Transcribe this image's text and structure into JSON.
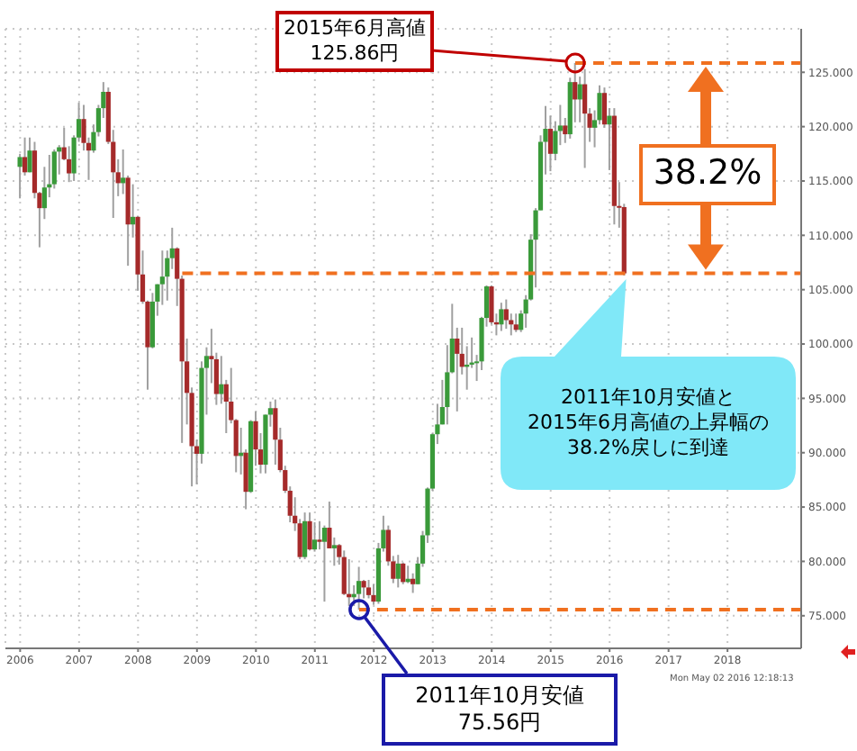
{
  "chart_data": {
    "type": "candlestick",
    "x": [
      "2006-01",
      "2006-02",
      "2006-03",
      "2006-04",
      "2006-05",
      "2006-06",
      "2006-07",
      "2006-08",
      "2006-09",
      "2006-10",
      "2006-11",
      "2006-12",
      "2007-01",
      "2007-02",
      "2007-03",
      "2007-04",
      "2007-05",
      "2007-06",
      "2007-07",
      "2007-08",
      "2007-09",
      "2007-10",
      "2007-11",
      "2007-12",
      "2008-01",
      "2008-02",
      "2008-03",
      "2008-04",
      "2008-05",
      "2008-06",
      "2008-07",
      "2008-08",
      "2008-09",
      "2008-10",
      "2008-11",
      "2008-12",
      "2009-01",
      "2009-02",
      "2009-03",
      "2009-04",
      "2009-05",
      "2009-06",
      "2009-07",
      "2009-08",
      "2009-09",
      "2009-10",
      "2009-11",
      "2009-12",
      "2010-01",
      "2010-02",
      "2010-03",
      "2010-04",
      "2010-05",
      "2010-06",
      "2010-07",
      "2010-08",
      "2010-09",
      "2010-10",
      "2010-11",
      "2010-12",
      "2011-01",
      "2011-02",
      "2011-03",
      "2011-04",
      "2011-05",
      "2011-06",
      "2011-07",
      "2011-08",
      "2011-09",
      "2011-10",
      "2011-11",
      "2011-12",
      "2012-01",
      "2012-02",
      "2012-03",
      "2012-04",
      "2012-05",
      "2012-06",
      "2012-07",
      "2012-08",
      "2012-09",
      "2012-10",
      "2012-11",
      "2012-12",
      "2013-01",
      "2013-02",
      "2013-03",
      "2013-04",
      "2013-05",
      "2013-06",
      "2013-07",
      "2013-08",
      "2013-09",
      "2013-10",
      "2013-11",
      "2013-12",
      "2014-01",
      "2014-02",
      "2014-03",
      "2014-04",
      "2014-05",
      "2014-06",
      "2014-07",
      "2014-08",
      "2014-09",
      "2014-10",
      "2014-11",
      "2014-12",
      "2015-01",
      "2015-02",
      "2015-03",
      "2015-04",
      "2015-05",
      "2015-06",
      "2015-07",
      "2015-08",
      "2015-09",
      "2015-10",
      "2015-11",
      "2015-12",
      "2016-01",
      "2016-02",
      "2016-03",
      "2016-04"
    ],
    "ohlc": [
      [
        116.3,
        117.5,
        113.4,
        117.2
      ],
      [
        117.2,
        119.0,
        115.5,
        115.8
      ],
      [
        115.8,
        119.0,
        115.8,
        117.8
      ],
      [
        117.8,
        118.6,
        113.4,
        113.9
      ],
      [
        113.9,
        114.0,
        108.9,
        112.5
      ],
      [
        112.5,
        116.3,
        111.5,
        114.4
      ],
      [
        114.4,
        117.4,
        113.5,
        114.7
      ],
      [
        114.7,
        117.9,
        114.3,
        117.7
      ],
      [
        117.7,
        118.3,
        115.6,
        118.1
      ],
      [
        118.1,
        119.9,
        116.9,
        117.0
      ],
      [
        117.0,
        118.2,
        114.9,
        115.7
      ],
      [
        115.7,
        119.2,
        115.0,
        119.0
      ],
      [
        119.0,
        122.2,
        118.6,
        120.7
      ],
      [
        120.7,
        122.0,
        117.8,
        118.5
      ],
      [
        118.5,
        119.0,
        115.1,
        117.8
      ],
      [
        117.8,
        120.2,
        117.6,
        119.5
      ],
      [
        119.5,
        122.0,
        119.1,
        121.7
      ],
      [
        121.7,
        124.1,
        120.8,
        123.2
      ],
      [
        123.2,
        123.6,
        118.4,
        118.6
      ],
      [
        118.6,
        119.7,
        111.6,
        115.8
      ],
      [
        115.8,
        117.0,
        113.6,
        114.8
      ],
      [
        114.8,
        117.9,
        113.8,
        115.3
      ],
      [
        115.3,
        115.5,
        107.2,
        111.0
      ],
      [
        111.0,
        114.7,
        109.8,
        111.7
      ],
      [
        111.7,
        111.8,
        104.9,
        106.4
      ],
      [
        106.4,
        108.6,
        103.7,
        103.9
      ],
      [
        103.9,
        104.0,
        95.8,
        99.7
      ],
      [
        99.7,
        104.7,
        99.6,
        103.9
      ],
      [
        103.9,
        105.5,
        102.6,
        105.5
      ],
      [
        105.5,
        108.6,
        103.6,
        106.2
      ],
      [
        106.2,
        108.6,
        104.0,
        107.9
      ],
      [
        107.9,
        110.7,
        106.9,
        108.8
      ],
      [
        108.8,
        108.9,
        103.5,
        106.0
      ],
      [
        106.0,
        106.3,
        90.9,
        98.4
      ],
      [
        98.4,
        100.5,
        92.6,
        95.5
      ],
      [
        95.5,
        96.0,
        86.9,
        90.6
      ],
      [
        90.6,
        91.2,
        87.1,
        89.9
      ],
      [
        89.9,
        98.4,
        89.0,
        97.8
      ],
      [
        97.8,
        99.7,
        93.5,
        98.9
      ],
      [
        98.9,
        101.4,
        96.4,
        98.6
      ],
      [
        98.6,
        99.2,
        94.4,
        95.4
      ],
      [
        95.4,
        98.9,
        94.5,
        96.3
      ],
      [
        96.3,
        96.7,
        91.8,
        94.7
      ],
      [
        94.7,
        97.8,
        92.7,
        93.0
      ],
      [
        93.0,
        93.1,
        88.2,
        89.7
      ],
      [
        89.7,
        92.3,
        88.0,
        90.0
      ],
      [
        90.0,
        90.3,
        84.8,
        86.4
      ],
      [
        86.4,
        93.0,
        86.3,
        92.9
      ],
      [
        92.9,
        93.8,
        88.8,
        90.3
      ],
      [
        90.3,
        91.8,
        88.1,
        88.9
      ],
      [
        88.9,
        93.5,
        88.1,
        93.5
      ],
      [
        93.5,
        94.7,
        92.4,
        94.1
      ],
      [
        94.1,
        94.9,
        88.9,
        91.2
      ],
      [
        91.2,
        92.3,
        88.2,
        88.4
      ],
      [
        88.4,
        88.8,
        86.3,
        86.5
      ],
      [
        86.5,
        86.9,
        83.6,
        84.2
      ],
      [
        84.2,
        85.9,
        82.8,
        83.5
      ],
      [
        83.5,
        83.9,
        80.2,
        80.4
      ],
      [
        80.4,
        84.5,
        80.2,
        83.7
      ],
      [
        83.7,
        84.5,
        81.0,
        81.1
      ],
      [
        81.1,
        83.6,
        80.9,
        82.0
      ],
      [
        82.0,
        83.7,
        81.1,
        81.8
      ],
      [
        81.8,
        83.3,
        76.3,
        83.1
      ],
      [
        83.1,
        85.5,
        81.2,
        81.2
      ],
      [
        81.2,
        82.2,
        79.6,
        81.5
      ],
      [
        81.5,
        81.6,
        79.7,
        80.4
      ],
      [
        80.4,
        81.0,
        76.9,
        77.0
      ],
      [
        77.0,
        80.2,
        75.9,
        76.7
      ],
      [
        76.7,
        77.8,
        75.9,
        77.0
      ],
      [
        77.0,
        79.5,
        75.56,
        78.2
      ],
      [
        78.2,
        78.3,
        76.6,
        77.6
      ],
      [
        77.6,
        78.3,
        76.6,
        76.9
      ],
      [
        76.9,
        77.9,
        76.0,
        76.3
      ],
      [
        76.3,
        81.7,
        76.1,
        81.2
      ],
      [
        81.2,
        84.2,
        80.9,
        82.9
      ],
      [
        82.9,
        83.3,
        79.6,
        80.0
      ],
      [
        80.0,
        80.5,
        78.0,
        78.4
      ],
      [
        78.4,
        80.6,
        77.6,
        79.8
      ],
      [
        79.8,
        79.9,
        77.9,
        78.1
      ],
      [
        78.1,
        79.6,
        78.0,
        78.4
      ],
      [
        78.4,
        78.9,
        77.1,
        77.9
      ],
      [
        77.9,
        80.4,
        77.9,
        79.8
      ],
      [
        79.8,
        82.8,
        79.5,
        82.4
      ],
      [
        82.4,
        86.8,
        81.7,
        86.7
      ],
      [
        86.7,
        91.8,
        86.5,
        91.7
      ],
      [
        91.7,
        94.5,
        90.8,
        92.6
      ],
      [
        92.6,
        96.7,
        92.6,
        94.2
      ],
      [
        94.2,
        99.9,
        92.6,
        97.4
      ],
      [
        97.4,
        103.7,
        97.3,
        100.5
      ],
      [
        100.5,
        101.5,
        93.8,
        99.1
      ],
      [
        99.1,
        101.5,
        97.2,
        97.9
      ],
      [
        97.9,
        99.8,
        95.8,
        98.1
      ],
      [
        98.1,
        100.6,
        97.8,
        98.3
      ],
      [
        98.3,
        99.0,
        96.6,
        98.4
      ],
      [
        98.4,
        102.5,
        97.6,
        102.4
      ],
      [
        102.4,
        105.4,
        101.6,
        105.3
      ],
      [
        105.3,
        105.4,
        101.8,
        102.0
      ],
      [
        102.0,
        102.8,
        100.8,
        101.8
      ],
      [
        101.8,
        103.8,
        101.2,
        103.2
      ],
      [
        103.2,
        104.1,
        101.4,
        102.2
      ],
      [
        102.2,
        102.8,
        100.8,
        101.8
      ],
      [
        101.8,
        102.8,
        101.1,
        101.3
      ],
      [
        101.3,
        103.1,
        101.1,
        102.8
      ],
      [
        102.8,
        104.5,
        101.5,
        104.1
      ],
      [
        104.1,
        110.1,
        104.0,
        109.6
      ],
      [
        109.6,
        112.5,
        105.2,
        112.3
      ],
      [
        112.3,
        119.2,
        112.3,
        118.6
      ],
      [
        118.6,
        121.9,
        115.6,
        119.8
      ],
      [
        119.8,
        121.0,
        115.9,
        117.5
      ],
      [
        117.5,
        120.5,
        116.9,
        119.6
      ],
      [
        119.6,
        122.0,
        118.3,
        120.1
      ],
      [
        120.1,
        120.8,
        118.5,
        119.3
      ],
      [
        119.3,
        124.5,
        118.9,
        124.1
      ],
      [
        124.1,
        125.86,
        120.4,
        122.5
      ],
      [
        122.5,
        124.6,
        120.4,
        123.9
      ],
      [
        123.9,
        125.3,
        116.2,
        121.2
      ],
      [
        121.2,
        121.7,
        118.6,
        119.9
      ],
      [
        119.9,
        121.5,
        118.1,
        120.6
      ],
      [
        120.6,
        123.8,
        120.2,
        123.1
      ],
      [
        123.1,
        123.6,
        119.9,
        120.2
      ],
      [
        120.2,
        121.7,
        116.0,
        121.0
      ],
      [
        121.0,
        121.7,
        111.0,
        112.7
      ],
      [
        112.7,
        114.9,
        110.7,
        112.6
      ],
      [
        112.6,
        112.9,
        106.3,
        106.5
      ]
    ],
    "colors": [
      "#3a9a3a",
      "#a52a2a",
      "#3a9a3a",
      "#a52a2a",
      "#a52a2a",
      "#3a9a3a",
      "#3a9a3a",
      "#3a9a3a",
      "#3a9a3a",
      "#a52a2a",
      "#a52a2a",
      "#3a9a3a",
      "#3a9a3a",
      "#a52a2a",
      "#a52a2a",
      "#3a9a3a",
      "#3a9a3a",
      "#3a9a3a",
      "#a52a2a",
      "#a52a2a",
      "#a52a2a",
      "#3a9a3a",
      "#a52a2a",
      "#3a9a3a",
      "#a52a2a",
      "#a52a2a",
      "#a52a2a",
      "#3a9a3a",
      "#3a9a3a",
      "#3a9a3a",
      "#3a9a3a",
      "#3a9a3a",
      "#a52a2a",
      "#a52a2a",
      "#a52a2a",
      "#a52a2a",
      "#a52a2a",
      "#3a9a3a",
      "#3a9a3a",
      "#a52a2a",
      "#a52a2a",
      "#3a9a3a",
      "#a52a2a",
      "#a52a2a",
      "#a52a2a",
      "#3a9a3a",
      "#a52a2a",
      "#3a9a3a",
      "#a52a2a",
      "#a52a2a",
      "#3a9a3a",
      "#3a9a3a",
      "#a52a2a",
      "#a52a2a",
      "#a52a2a",
      "#a52a2a",
      "#a52a2a",
      "#a52a2a",
      "#3a9a3a",
      "#a52a2a",
      "#3a9a3a",
      "#a52a2a",
      "#3a9a3a",
      "#a52a2a",
      "#3a9a3a",
      "#a52a2a",
      "#a52a2a",
      "#a52a2a",
      "#3a9a3a",
      "#3a9a3a",
      "#a52a2a",
      "#a52a2a",
      "#a52a2a",
      "#3a9a3a",
      "#3a9a3a",
      "#a52a2a",
      "#a52a2a",
      "#3a9a3a",
      "#a52a2a",
      "#3a9a3a",
      "#a52a2a",
      "#3a9a3a",
      "#3a9a3a",
      "#3a9a3a",
      "#3a9a3a",
      "#3a9a3a",
      "#3a9a3a",
      "#3a9a3a",
      "#3a9a3a",
      "#a52a2a",
      "#a52a2a",
      "#3a9a3a",
      "#3a9a3a",
      "#3a9a3a",
      "#3a9a3a",
      "#3a9a3a",
      "#a52a2a",
      "#a52a2a",
      "#3a9a3a",
      "#a52a2a",
      "#a52a2a",
      "#a52a2a",
      "#3a9a3a",
      "#3a9a3a",
      "#3a9a3a",
      "#3a9a3a",
      "#3a9a3a",
      "#3a9a3a",
      "#a52a2a",
      "#3a9a3a",
      "#3a9a3a",
      "#a52a2a",
      "#3a9a3a",
      "#a52a2a",
      "#3a9a3a",
      "#a52a2a",
      "#a52a2a",
      "#3a9a3a",
      "#3a9a3a",
      "#a52a2a",
      "#3a9a3a",
      "#a52a2a",
      "#a52a2a",
      "#a52a2a"
    ],
    "xlim": [
      "2005-10",
      "2019-04"
    ],
    "xticks": [
      "2006",
      "2007",
      "2008",
      "2009",
      "2010",
      "2011",
      "2012",
      "2013",
      "2014",
      "2015",
      "2016",
      "2017",
      "2018"
    ],
    "ylim": [
      72,
      129
    ],
    "yticks": [
      {
        "value": 75,
        "label": "75.000"
      },
      {
        "value": 80,
        "label": "80.000"
      },
      {
        "value": 85,
        "label": "85.000"
      },
      {
        "value": 90,
        "label": "90.000"
      },
      {
        "value": 95,
        "label": "95.000"
      },
      {
        "value": 100,
        "label": "100.000"
      },
      {
        "value": 105,
        "label": "105.000"
      },
      {
        "value": 110,
        "label": "110.000"
      },
      {
        "value": 115,
        "label": "115.000"
      },
      {
        "value": 120,
        "label": "120.000"
      },
      {
        "value": 125,
        "label": "125.000"
      }
    ],
    "grid": true,
    "ref_lines": [
      {
        "axis": "y",
        "value": 125.86,
        "color": "#f07020",
        "line_style": "dashed"
      },
      {
        "axis": "y",
        "value": 106.5,
        "color": "#f07020",
        "line_style": "dashed"
      },
      {
        "axis": "y",
        "value": 75.56,
        "color": "#f07020",
        "line_style": "dashed"
      }
    ],
    "annotations": [
      {
        "text": "2015年6月高値\n125.86円",
        "x": "2015-06",
        "y": 125.86
      },
      {
        "text": "2011年10月安値\n75.56円",
        "x": "2011-10",
        "y": 75.56
      },
      "38.2%",
      "2011年10月安値と\n2015年6月高値の上昇幅の\n38.2%戻しに到達",
      "Mon May 02 2016 12:18:13"
    ]
  }
}
